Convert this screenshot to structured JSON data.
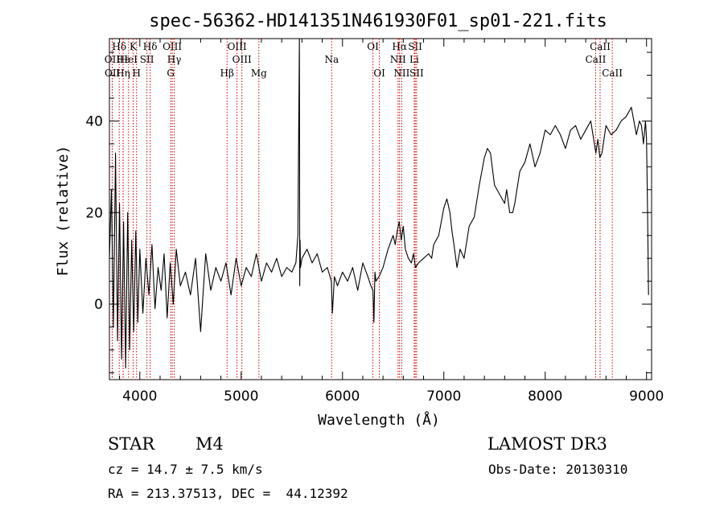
{
  "chart_data": {
    "type": "line",
    "title": "spec-56362-HD141351N461930F01_sp01-221.fits",
    "xlabel": "Wavelength (Å)",
    "ylabel": "Flux (relative)",
    "xlim": [
      3700,
      9050
    ],
    "ylim": [
      -16.5,
      58
    ],
    "xticks": [
      4000,
      5000,
      6000,
      7000,
      8000,
      9000
    ],
    "yticks": [
      0,
      20,
      40
    ],
    "grid": false,
    "series": [
      {
        "name": "flux",
        "x": [
          3700,
          3720,
          3740,
          3760,
          3780,
          3800,
          3820,
          3840,
          3860,
          3880,
          3900,
          3920,
          3940,
          3960,
          3980,
          4000,
          4030,
          4060,
          4090,
          4120,
          4150,
          4180,
          4210,
          4240,
          4270,
          4300,
          4330,
          4360,
          4400,
          4450,
          4500,
          4550,
          4600,
          4650,
          4700,
          4750,
          4800,
          4850,
          4900,
          4950,
          5000,
          5050,
          5100,
          5150,
          5200,
          5250,
          5300,
          5350,
          5400,
          5450,
          5500,
          5540,
          5560,
          5575,
          5578,
          5581,
          5585,
          5600,
          5650,
          5700,
          5750,
          5800,
          5850,
          5890,
          5900,
          5920,
          5950,
          6000,
          6050,
          6100,
          6150,
          6200,
          6250,
          6280,
          6300,
          6310,
          6320,
          6330,
          6360,
          6400,
          6450,
          6500,
          6520,
          6540,
          6560,
          6580,
          6600,
          6620,
          6650,
          6680,
          6700,
          6720,
          6750,
          6800,
          6850,
          6880,
          6900,
          6950,
          7000,
          7030,
          7060,
          7080,
          7100,
          7130,
          7160,
          7200,
          7250,
          7300,
          7350,
          7400,
          7430,
          7460,
          7500,
          7550,
          7600,
          7620,
          7650,
          7680,
          7700,
          7750,
          7800,
          7850,
          7900,
          7950,
          8000,
          8050,
          8100,
          8150,
          8200,
          8250,
          8300,
          8350,
          8400,
          8450,
          8500,
          8520,
          8540,
          8560,
          8600,
          8650,
          8700,
          8750,
          8800,
          8850,
          8900,
          8930,
          8950,
          8970,
          8990,
          9000,
          9010,
          9020
        ],
        "y": [
          10,
          25,
          -5,
          33,
          -8,
          22,
          -12,
          18,
          -14,
          20,
          -10,
          14,
          -6,
          16,
          -4,
          12,
          -2,
          10,
          2,
          13,
          -1,
          8,
          3,
          11,
          -3,
          9,
          0,
          12,
          4,
          7,
          2,
          10,
          -6,
          11,
          3,
          8,
          5,
          9,
          2,
          10,
          4,
          8,
          6,
          11,
          5,
          9,
          7,
          10,
          6,
          8,
          7,
          9,
          15,
          58,
          4,
          14,
          8,
          10,
          12,
          9,
          11,
          7,
          8,
          5,
          -2,
          6,
          4,
          7,
          5,
          8,
          3,
          9,
          6,
          4,
          3,
          -4,
          7,
          5,
          6,
          8,
          12,
          15,
          13,
          16,
          18,
          14,
          17,
          12,
          10,
          9,
          11,
          8,
          9,
          10,
          11,
          10,
          13,
          15,
          21,
          23,
          20,
          16,
          13,
          8,
          12,
          10,
          17,
          19,
          26,
          32,
          34,
          33,
          26,
          24,
          22,
          25,
          20,
          20,
          22,
          29,
          31,
          35,
          30,
          33,
          38,
          37,
          39,
          37,
          34,
          38,
          39,
          36,
          38,
          40,
          33,
          36,
          32,
          33,
          39,
          37,
          38,
          40,
          41,
          43,
          37,
          40,
          39,
          35,
          40,
          36,
          20,
          2
        ]
      }
    ],
    "lines": [
      {
        "label": "Hδ",
        "x": 3797,
        "row": 1
      },
      {
        "label": "OII",
        "x": 3727,
        "row": 2
      },
      {
        "label": "OII",
        "x": 3729,
        "row": 3
      },
      {
        "label": "Hε",
        "x": 3836,
        "row": 2
      },
      {
        "label": "Hη",
        "x": 3835,
        "row": 3
      },
      {
        "label": "K",
        "x": 3934,
        "row": 1
      },
      {
        "label": "HeI",
        "x": 3889,
        "row": 2
      },
      {
        "label": "H",
        "x": 3968,
        "row": 3
      },
      {
        "label": "SII",
        "x": 4070,
        "row": 2
      },
      {
        "label": "Hδ",
        "x": 4102,
        "row": 1
      },
      {
        "label": "OIII",
        "x": 4320,
        "row": 1
      },
      {
        "label": "Hγ",
        "x": 4340,
        "row": 2
      },
      {
        "label": "G",
        "x": 4305,
        "row": 3
      },
      {
        "label": "Hβ",
        "x": 4861,
        "row": 3
      },
      {
        "label": "OIII",
        "x": 4959,
        "row": 1
      },
      {
        "label": "OIII",
        "x": 5007,
        "row": 2
      },
      {
        "label": "Mg",
        "x": 5175,
        "row": 3
      },
      {
        "label": "Na",
        "x": 5893,
        "row": 2
      },
      {
        "label": "OI",
        "x": 6300,
        "row": 1
      },
      {
        "label": "OI",
        "x": 6364,
        "row": 3
      },
      {
        "label": "Hα",
        "x": 6563,
        "row": 1
      },
      {
        "label": "NII",
        "x": 6548,
        "row": 2
      },
      {
        "label": "NII",
        "x": 6584,
        "row": 3
      },
      {
        "label": "SII",
        "x": 6717,
        "row": 1
      },
      {
        "label": "Li",
        "x": 6708,
        "row": 2
      },
      {
        "label": "SII",
        "x": 6731,
        "row": 3
      },
      {
        "label": "CaII",
        "x": 8542,
        "row": 1
      },
      {
        "label": "CaII",
        "x": 8498,
        "row": 2
      },
      {
        "label": "CaII",
        "x": 8662,
        "row": 3
      }
    ]
  },
  "info": {
    "class": "STAR",
    "subclass": "M4",
    "survey": "LAMOST DR3",
    "cz": "cz = 14.7 ± 7.5 km/s",
    "obs_date": "Obs-Date: 20130310",
    "radec": "RA = 213.37513, DEC =  44.12392"
  },
  "colors": {
    "spectrum": "#000000",
    "line_marker": "#cc0000",
    "axis": "#000000",
    "background": "#ffffff"
  }
}
